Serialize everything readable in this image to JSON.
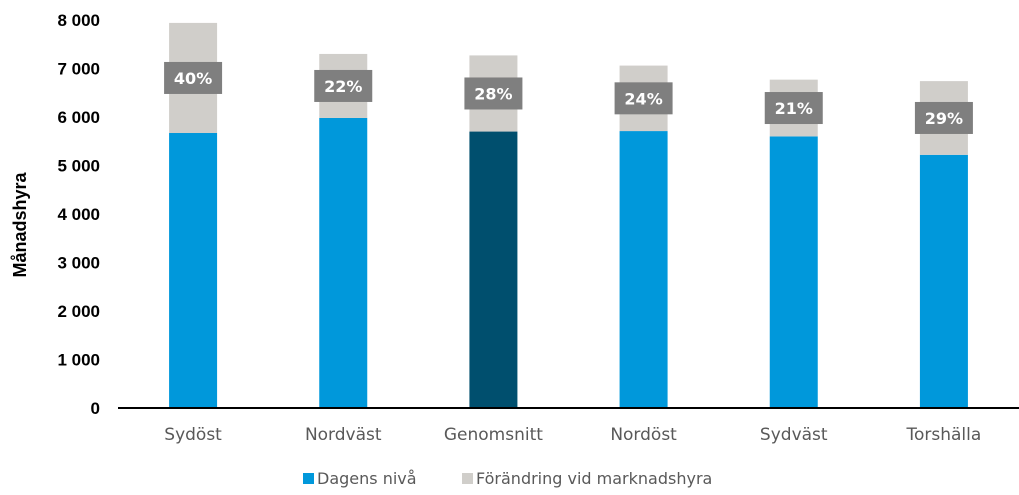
{
  "chart_data": {
    "type": "bar",
    "stacked": true,
    "categories": [
      "Sydöst",
      "Nordväst",
      "Genomsnitt",
      "Nordöst",
      "Sydväst",
      "Torshälla"
    ],
    "series": [
      {
        "name": "Dagens nivå",
        "color": "#0098DB",
        "values": [
          5670,
          5980,
          5700,
          5710,
          5600,
          5220
        ]
      },
      {
        "name": "Förändring vid marknadshyra",
        "color": "#D0CECA",
        "values": [
          2270,
          1320,
          1570,
          1350,
          1170,
          1520
        ]
      }
    ],
    "highlight": {
      "category": "Genomsnitt",
      "color": "#004F6E"
    },
    "annotations": [
      "40%",
      "22%",
      "28%",
      "24%",
      "21%",
      "29%"
    ],
    "annotation_color": "#7F7F7F",
    "ylabel": "Månadshyra",
    "xlabel": "",
    "ylim": [
      0,
      8000
    ],
    "yticks": [
      0,
      1000,
      2000,
      3000,
      4000,
      5000,
      6000,
      7000,
      8000
    ],
    "ytick_labels": [
      "0",
      "1 000",
      "2 000",
      "3 000",
      "4 000",
      "5 000",
      "6 000",
      "7 000",
      "8 000"
    ],
    "grid": false,
    "legend_position": "bottom"
  }
}
